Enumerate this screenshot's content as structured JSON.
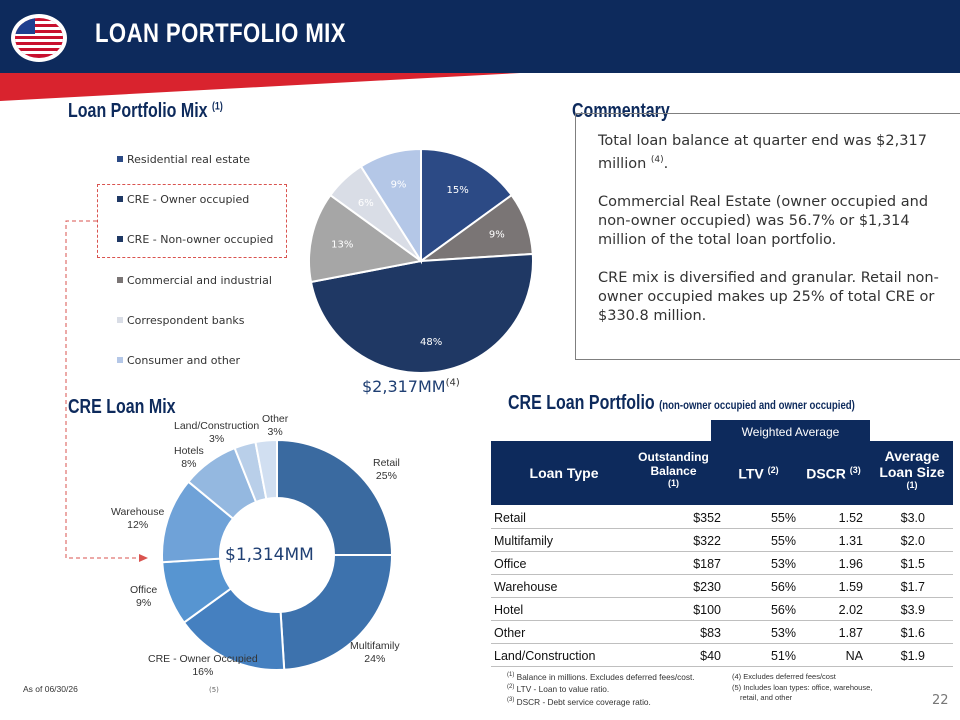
{
  "header": {
    "title": "LOAN PORTFOLIO MIX"
  },
  "sections": {
    "pie_title": "Loan Portfolio Mix",
    "pie_title_note": "(1)",
    "donut_title": "CRE Loan Mix",
    "table_title": "CRE Loan Portfolio",
    "table_subtitle": "(non-owner occupied and owner occupied)",
    "commentary_title": "Commentary"
  },
  "commentary": {
    "p1": "Total loan balance at quarter end was $2,317 million",
    "p1_note": "(4)",
    "p1_end": ".",
    "p2": "Commercial Real Estate (owner occupied and non-owner occupied) was 56.7% or $1,314 million of the total loan portfolio.",
    "p3": "CRE mix is diversified and granular. Retail non-owner occupied makes up 25% of total CRE or $330.8 million."
  },
  "pie_total": {
    "value": "$2,317MM",
    "note": "(4)"
  },
  "donut_total": "$1,314MM",
  "chart_data": [
    {
      "type": "pie",
      "title": "Loan Portfolio Mix",
      "categories": [
        "Residential real estate",
        "CRE - Owner occupied",
        "CRE - Non-owner occupied",
        "Commercial and industrial",
        "Correspondent banks",
        "Consumer and other"
      ],
      "values": [
        15,
        9,
        48,
        13,
        6,
        9
      ],
      "labels": [
        "15%",
        "9%",
        "48%",
        "13%",
        "6%",
        "9%"
      ],
      "colors": [
        "#2c4a85",
        "#7a7575",
        "#1f3864",
        "#a6a6a6",
        "#d9dde6",
        "#b4c7e7"
      ],
      "label_colors": [
        "#ffffff",
        "#ffffff",
        "#ffffff",
        "#ffffff",
        "#ffffff",
        "#ffffff"
      ],
      "legend_position": "left"
    },
    {
      "type": "pie",
      "subtype": "donut",
      "title": "CRE Loan Mix",
      "categories": [
        "Retail",
        "Multifamily",
        "CRE - Owner Occupied",
        "Office",
        "Warehouse",
        "Hotels",
        "Land/Construction",
        "Other"
      ],
      "values": [
        25,
        24,
        16,
        9,
        12,
        8,
        3,
        3
      ],
      "labels": [
        "25%",
        "24%",
        "16%",
        "9%",
        "12%",
        "8%",
        "3%",
        "3%"
      ],
      "colors": [
        "#3a6aa0",
        "#3d72ad",
        "#4580c0",
        "#5795d1",
        "#6fa2d8",
        "#94b8e0",
        "#b9cfe9",
        "#d1dff1"
      ],
      "legend_position": "none"
    },
    {
      "type": "table",
      "title": "CRE Loan Portfolio",
      "group_header": "Weighted Average",
      "columns": [
        {
          "label": "Loan Type",
          "note": ""
        },
        {
          "label": "Outstanding Balance",
          "note": "(1)"
        },
        {
          "label": "LTV",
          "note": "(2)"
        },
        {
          "label": "DSCR",
          "note": "(3)"
        },
        {
          "label": "Average Loan Size",
          "note": "(1)"
        }
      ],
      "rows": [
        [
          "Retail",
          "$352",
          "55%",
          "1.52",
          "$3.0"
        ],
        [
          "Multifamily",
          "$322",
          "55%",
          "1.31",
          "$2.0"
        ],
        [
          "Office",
          "$187",
          "53%",
          "1.96",
          "$1.5"
        ],
        [
          "Warehouse",
          "$230",
          "56%",
          "1.59",
          "$1.7"
        ],
        [
          "Hotel",
          "$100",
          "56%",
          "2.02",
          "$3.9"
        ],
        [
          "Other",
          "$83",
          "53%",
          "1.87",
          "$1.6"
        ],
        [
          "Land/Construction",
          "$40",
          "51%",
          "NA",
          "$1.9"
        ]
      ]
    }
  ],
  "footnotes": {
    "f1_mark": "(1)",
    "f1": "Balance in millions. Excludes deferred fees/cost.",
    "f2_mark": "(2)",
    "f2": "LTV - Loan to value ratio.",
    "f3_mark": "(3)",
    "f3": "DSCR - Debt service coverage ratio.",
    "f4": "(4) Excludes deferred fees/cost",
    "f5a": "(5) Includes loan types: office, warehouse,",
    "f5b": "retail, and other",
    "five_mark": "(5)"
  },
  "as_of": "As of 06/30/26",
  "page_number": "22",
  "colors": {
    "navy": "#0d2a5c",
    "red": "#d9232e"
  }
}
